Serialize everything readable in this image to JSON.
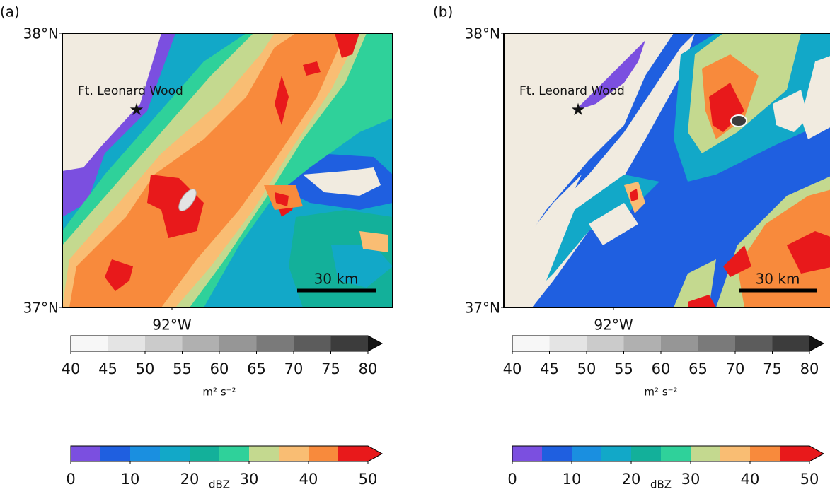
{
  "panels": [
    {
      "label": "(a)",
      "lat_labels": [
        "38°N",
        "37°N"
      ],
      "lon_label": "92°W",
      "place": "Ft. Leonard Wood",
      "scale_label": "30 km"
    },
    {
      "label": "(b)",
      "lat_labels": [
        "38°N",
        "37°N"
      ],
      "lon_label": "92°W",
      "place": "Ft. Leonard Wood",
      "scale_label": "30 km"
    }
  ],
  "background_color": "#f1ebe0",
  "colorbars": [
    {
      "ticks": [
        40,
        45,
        50,
        55,
        60,
        65,
        70,
        75,
        80
      ],
      "unit": "m² s⁻²",
      "colors": [
        "#f7f7f7",
        "#e4e4e4",
        "#cbcbcb",
        "#b0b0b0",
        "#969696",
        "#7a7a7a",
        "#5c5c5c",
        "#3c3c3c",
        "#151515"
      ]
    },
    {
      "ticks": [
        0,
        10,
        20,
        30,
        40,
        50
      ],
      "unit": "dBZ",
      "colors": [
        "#7b4fe0",
        "#1f5fe0",
        "#1a8fe0",
        "#12a8c8",
        "#13b09a",
        "#2fd19a",
        "#c4d98f",
        "#f9bd73",
        "#f88a3c",
        "#e8191b",
        "#e8191b"
      ]
    }
  ]
}
